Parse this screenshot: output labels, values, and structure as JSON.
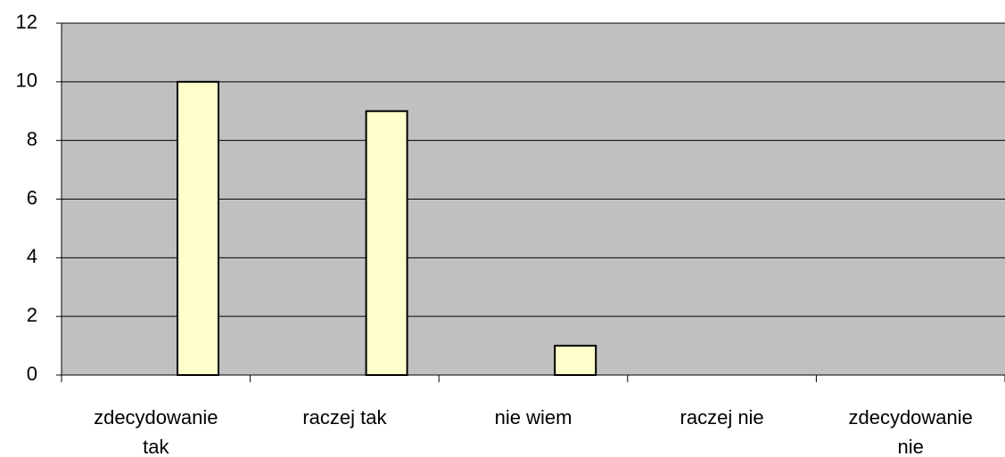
{
  "chart_data": {
    "type": "bar",
    "categories": [
      "zdecydowanie tak",
      "raczej tak",
      "nie wiem",
      "raczej nie",
      "zdecydowanie nie"
    ],
    "values": [
      10,
      9,
      1,
      0,
      0
    ],
    "color": "#ffffcc",
    "plot_background": "#c0c0c0",
    "ylim": [
      0,
      12
    ],
    "yticks": [
      0,
      2,
      4,
      6,
      8,
      10,
      12
    ],
    "grid": true
  }
}
